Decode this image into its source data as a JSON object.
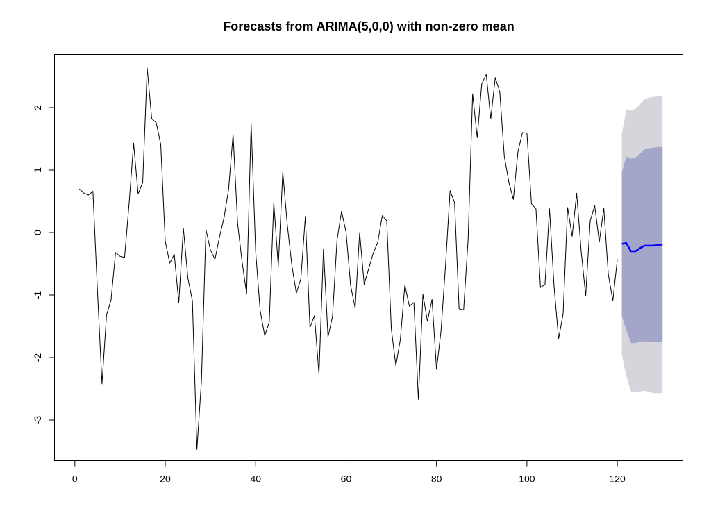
{
  "chart_data": {
    "type": "line",
    "title": "Forecasts from ARIMA(5,0,0) with non-zero mean",
    "xlabel": "",
    "ylabel": "",
    "xlim": [
      -4.5,
      134.5
    ],
    "ylim": [
      -3.65,
      2.85
    ],
    "x_ticks": [
      0,
      20,
      40,
      60,
      80,
      100,
      120
    ],
    "x_tick_labels": [
      "0",
      "20",
      "40",
      "60",
      "80",
      "100",
      "120"
    ],
    "y_ticks": [
      -3,
      -2,
      -1,
      0,
      1,
      2
    ],
    "y_tick_labels": [
      "-3",
      "-2",
      "-1",
      "0",
      "1",
      "2"
    ],
    "grid": false,
    "legend": "none",
    "series": [
      {
        "role": "observed",
        "color": "#000000",
        "x_start": 1,
        "values": [
          0.7,
          0.63,
          0.6,
          0.66,
          -0.95,
          -2.42,
          -1.32,
          -1.08,
          -0.32,
          -0.38,
          -0.4,
          0.46,
          1.43,
          0.62,
          0.8,
          2.63,
          1.82,
          1.76,
          1.41,
          -0.14,
          -0.49,
          -0.35,
          -1.12,
          0.07,
          -0.73,
          -1.09,
          -3.47,
          -2.38,
          0.05,
          -0.28,
          -0.43,
          -0.07,
          0.24,
          0.69,
          1.57,
          0.15,
          -0.47,
          -0.98,
          1.75,
          -0.3,
          -1.25,
          -1.65,
          -1.43,
          0.48,
          -0.54,
          0.97,
          0.12,
          -0.52,
          -0.97,
          -0.74,
          0.26,
          -1.52,
          -1.33,
          -2.27,
          -0.26,
          -1.67,
          -1.34,
          -0.12,
          0.34,
          0.01,
          -0.85,
          -1.21,
          0.0,
          -0.83,
          -0.58,
          -0.33,
          -0.16,
          0.27,
          0.19,
          -1.54,
          -2.13,
          -1.71,
          -0.84,
          -1.18,
          -1.12,
          -2.67,
          -0.99,
          -1.42,
          -1.07,
          -2.19,
          -1.57,
          -0.52,
          0.67,
          0.48,
          -1.22,
          -1.24,
          -0.11,
          2.22,
          1.52,
          2.38,
          2.53,
          1.82,
          2.48,
          2.25,
          1.22,
          0.81,
          0.53,
          1.29,
          1.6,
          1.59,
          0.46,
          0.38,
          -0.88,
          -0.83,
          0.38,
          -0.85,
          -1.7,
          -1.3,
          0.4,
          -0.06,
          0.63,
          -0.3,
          -1.01,
          0.19,
          0.43,
          -0.15,
          0.39,
          -0.67,
          -1.09,
          -0.43
        ]
      },
      {
        "role": "forecast-mean",
        "color": "#0000FF",
        "x_start": 121,
        "values": [
          -0.18,
          -0.17,
          -0.3,
          -0.3,
          -0.25,
          -0.21,
          -0.21,
          -0.21,
          -0.2,
          -0.19
        ]
      }
    ],
    "intervals": [
      {
        "level": 95,
        "color": "#D5D5DB",
        "x_start": 121,
        "upper": [
          1.58,
          1.96,
          1.95,
          1.98,
          2.05,
          2.13,
          2.16,
          2.17,
          2.18,
          2.19
        ],
        "lower": [
          -1.95,
          -2.3,
          -2.54,
          -2.56,
          -2.54,
          -2.53,
          -2.55,
          -2.57,
          -2.57,
          -2.57
        ]
      },
      {
        "level": 80,
        "color": "#A3A6C8",
        "x_start": 121,
        "upper": [
          0.97,
          1.22,
          1.18,
          1.2,
          1.26,
          1.33,
          1.35,
          1.36,
          1.37,
          1.37
        ],
        "lower": [
          -1.34,
          -1.56,
          -1.77,
          -1.77,
          -1.75,
          -1.74,
          -1.75,
          -1.75,
          -1.75,
          -1.75
        ]
      }
    ]
  }
}
